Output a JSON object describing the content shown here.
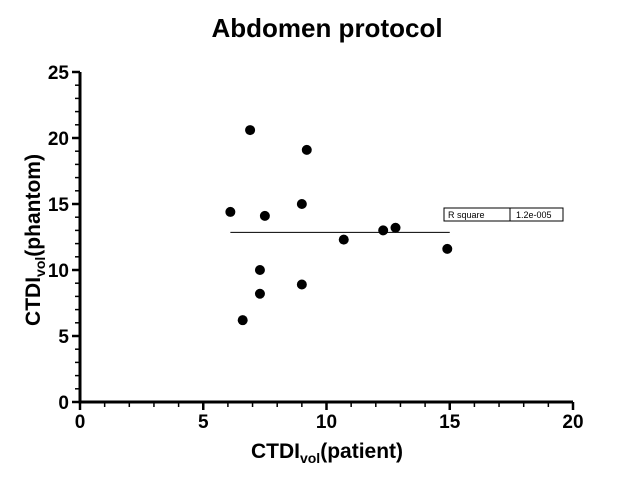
{
  "chart_data": {
    "type": "scatter",
    "title": "Abdomen protocol",
    "xlabel": {
      "prefix": "CTDI",
      "subscript": "vol",
      "suffix": "(patient)"
    },
    "ylabel": {
      "prefix": "CTDI",
      "subscript": "vol",
      "suffix": "(phantom)"
    },
    "xlim": [
      0,
      20
    ],
    "ylim": [
      0,
      25
    ],
    "x_ticks": [
      0,
      5,
      10,
      15,
      20
    ],
    "y_ticks": [
      0,
      5,
      10,
      15,
      20,
      25
    ],
    "x_minor_step": 1,
    "y_minor_step": 1,
    "points": [
      {
        "x": 6.1,
        "y": 14.4
      },
      {
        "x": 6.6,
        "y": 6.2
      },
      {
        "x": 6.9,
        "y": 20.6
      },
      {
        "x": 7.3,
        "y": 8.2
      },
      {
        "x": 7.3,
        "y": 10.0
      },
      {
        "x": 7.5,
        "y": 14.1
      },
      {
        "x": 9.0,
        "y": 8.9
      },
      {
        "x": 9.0,
        "y": 15.0
      },
      {
        "x": 9.2,
        "y": 19.1
      },
      {
        "x": 10.7,
        "y": 12.3
      },
      {
        "x": 12.3,
        "y": 13.0
      },
      {
        "x": 12.8,
        "y": 13.2
      },
      {
        "x": 14.9,
        "y": 11.6
      }
    ],
    "fit_line": {
      "x1": 6.1,
      "y1": 12.85,
      "x2": 15.0,
      "y2": 12.85
    },
    "r_square": {
      "label": "R square",
      "value": "1.2e-005"
    },
    "grid": false
  }
}
